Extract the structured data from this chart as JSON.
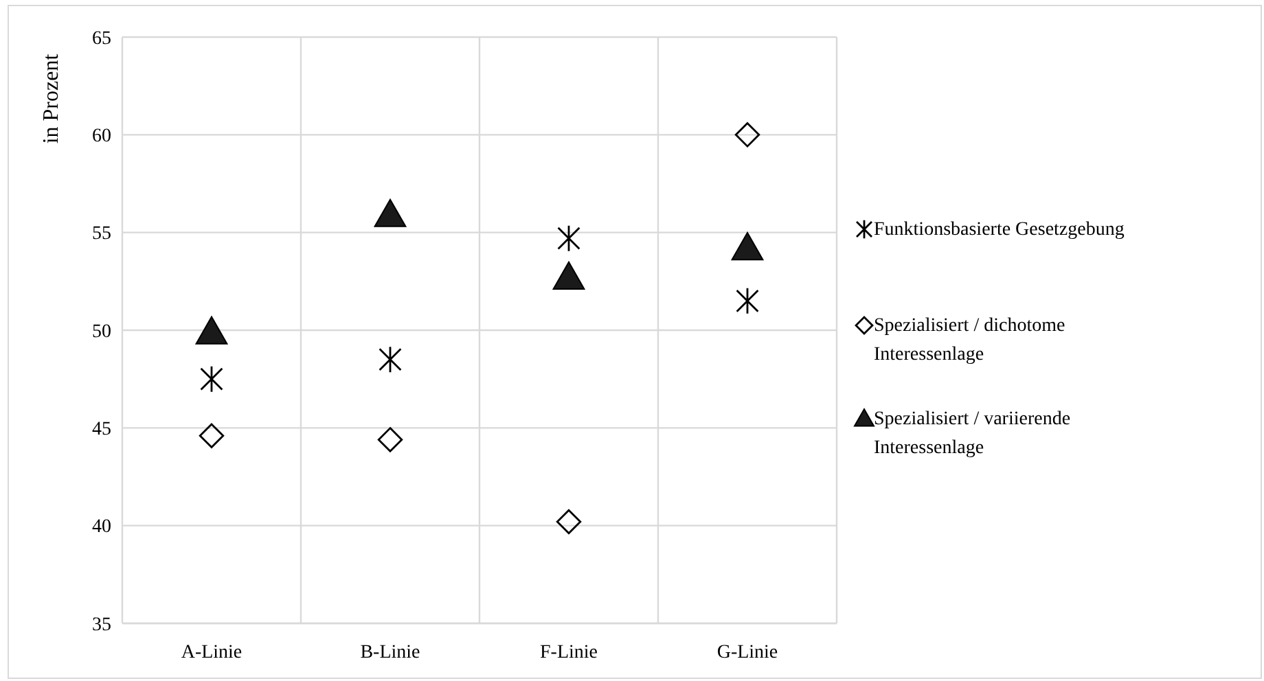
{
  "chart_data": {
    "type": "scatter",
    "ylabel": "in Prozent",
    "categories": [
      "A-Linie",
      "B-Linie",
      "F-Linie",
      "G-Linie"
    ],
    "ylim": [
      35,
      65
    ],
    "yticks": [
      35,
      40,
      45,
      50,
      55,
      60,
      65
    ],
    "grid": true,
    "legend": "right",
    "series": [
      {
        "name": "Funktionsbasierte Gesetzgebung",
        "color": "#000000",
        "marker": "cross",
        "values": [
          47.5,
          48.5,
          54.7,
          51.5
        ]
      },
      {
        "name": "Spezialisiert / dichotome Interessenlage",
        "color": "#000000",
        "marker": "diamond",
        "values": [
          44.6,
          44.4,
          40.2,
          60.0
        ]
      },
      {
        "name": "Spezialisiert / variierende Interessenlage",
        "color": "#000000",
        "marker": "triangle",
        "values": [
          49.9,
          55.9,
          52.7,
          54.2
        ]
      }
    ]
  }
}
